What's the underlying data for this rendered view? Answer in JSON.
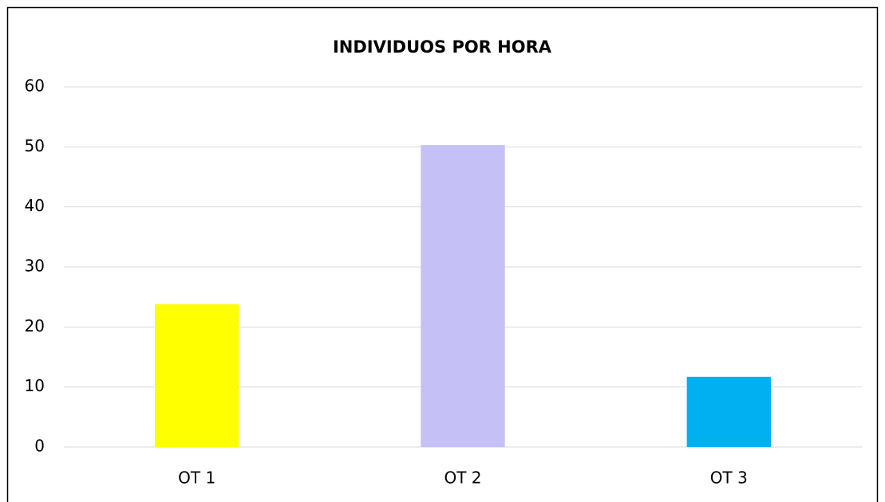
{
  "chart_data": {
    "type": "bar",
    "title": "INDIVIDUOS POR HORA",
    "categories": [
      "OT 1",
      "OT 2",
      "OT 3"
    ],
    "values": [
      23.8,
      50.3,
      11.7
    ],
    "colors": [
      "#ffff00",
      "#c5c0f6",
      "#00b0f0"
    ],
    "ylim": [
      0,
      60
    ],
    "yticks": [
      0,
      10,
      20,
      30,
      40,
      50,
      60
    ],
    "grid": true
  }
}
